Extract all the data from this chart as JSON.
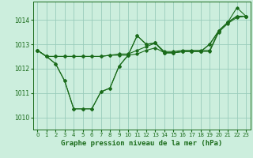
{
  "background_color": "#cceedd",
  "grid_color": "#99ccbb",
  "line_color": "#1a6b1a",
  "xlabel": "Graphe pression niveau de la mer (hPa)",
  "xlim": [
    -0.5,
    23.5
  ],
  "ylim": [
    1009.5,
    1014.75
  ],
  "yticks": [
    1010,
    1011,
    1012,
    1013,
    1014
  ],
  "xticks": [
    0,
    1,
    2,
    3,
    4,
    5,
    6,
    7,
    8,
    9,
    10,
    11,
    12,
    13,
    14,
    15,
    16,
    17,
    18,
    19,
    20,
    21,
    22,
    23
  ],
  "series": [
    [
      1012.75,
      1012.5,
      1012.5,
      1012.5,
      1012.5,
      1012.5,
      1012.5,
      1012.5,
      1012.55,
      1012.55,
      1012.55,
      1012.6,
      1012.75,
      1012.85,
      1012.65,
      1012.65,
      1012.7,
      1012.7,
      1012.7,
      1012.7,
      1013.5,
      1013.85,
      1014.1,
      1014.15
    ],
    [
      1012.75,
      1012.5,
      1012.5,
      1012.5,
      1012.5,
      1012.5,
      1012.5,
      1012.5,
      1012.55,
      1012.6,
      1012.6,
      1012.75,
      1012.9,
      1013.05,
      1012.7,
      1012.7,
      1012.75,
      1012.75,
      1012.75,
      1012.75,
      1013.55,
      1013.9,
      1014.15,
      1014.15
    ],
    [
      1012.75,
      1012.5,
      1012.2,
      1011.5,
      1010.35,
      1010.35,
      1010.35,
      1011.05,
      1011.2,
      1012.1,
      1012.55,
      1013.35,
      1013.0,
      1013.05,
      1012.65,
      1012.65,
      1012.7,
      1012.7,
      1012.7,
      1013.0,
      1013.55,
      1013.9,
      1014.5,
      1014.15
    ],
    [
      1012.75,
      1012.5,
      1012.2,
      1011.5,
      1010.35,
      1010.35,
      1010.35,
      1011.05,
      1011.2,
      1012.1,
      1012.55,
      1013.35,
      1013.0,
      1013.05,
      1012.65,
      1012.65,
      1012.7,
      1012.7,
      1012.7,
      1013.0,
      1013.55,
      1013.9,
      1014.15,
      1014.15
    ]
  ]
}
